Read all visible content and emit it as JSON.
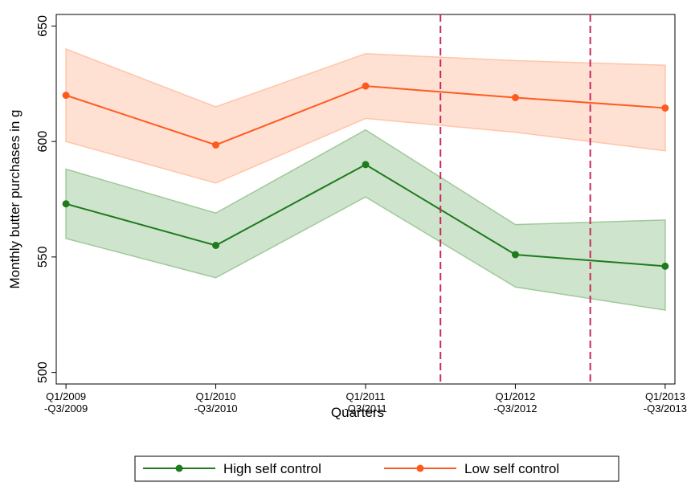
{
  "chart_data": {
    "type": "line_band",
    "categories": [
      [
        "Q1/2009",
        "-Q3/2009"
      ],
      [
        "Q1/2010",
        "-Q3/2010"
      ],
      [
        "Q1/2011",
        "-Q3/2011"
      ],
      [
        "Q1/2012",
        "-Q3/2012"
      ],
      [
        "Q1/2013",
        "-Q3/2013"
      ]
    ],
    "series": [
      {
        "name": "High self control",
        "color": "#1e7b1e",
        "band_color": "#9fc99a",
        "values": [
          573,
          555,
          590,
          551,
          546
        ],
        "lower": [
          558,
          541,
          576,
          537,
          527
        ],
        "upper": [
          588,
          569,
          605,
          564,
          566
        ]
      },
      {
        "name": "Low self control",
        "color": "#ff5a1e",
        "band_color": "#ffc4a8",
        "values": [
          620,
          598.5,
          624,
          619,
          614.5
        ],
        "lower": [
          600,
          582,
          610,
          604,
          596
        ],
        "upper": [
          640,
          615,
          638,
          635,
          633
        ]
      }
    ],
    "vlines": [
      2.5,
      3.5
    ],
    "vline_color": "#c8285a",
    "xlabel": "Quarters",
    "ylabel": "Monthly butter purchases in g",
    "ylim": [
      495,
      655
    ],
    "yticks": [
      500,
      550,
      600,
      650
    ],
    "grid": false,
    "legend": "bottom"
  }
}
